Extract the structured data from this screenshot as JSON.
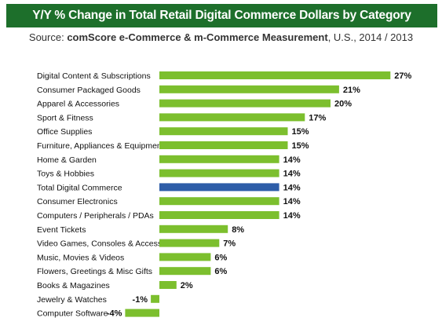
{
  "header": {
    "title": "Y/Y % Change in Total Retail Digital Commerce Dollars by Category",
    "source_label": "Source: ",
    "source_name": "comScore e-Commerce & m-Commerce Measurement",
    "source_rest": ", U.S., 2014 / 2013"
  },
  "colors": {
    "title_bg": "#1d6f2b",
    "bar": "#7cbf2e",
    "highlight_bar": "#2e5da8",
    "highlight_text": "#2e5da8"
  },
  "chart_data": {
    "type": "bar",
    "orientation": "horizontal",
    "title": "Y/Y % Change in Total Retail Digital Commerce Dollars by Category",
    "subtitle": "Source: comScore e-Commerce & m-Commerce Measurement, U.S., 2014 / 2013",
    "xlabel": "",
    "ylabel": "",
    "xlim": [
      -4,
      27
    ],
    "grid": false,
    "highlight_category": "Total Digital Commerce",
    "categories": [
      "Digital Content & Subscriptions",
      "Consumer Packaged Goods",
      "Apparel & Accessories",
      "Sport & Fitness",
      "Office Supplies",
      "Furniture, Appliances & Equipment",
      "Home & Garden",
      "Toys & Hobbies",
      "Total Digital Commerce",
      "Consumer Electronics",
      "Computers / Peripherals / PDAs",
      "Event Tickets",
      "Video Games, Consoles & Accessories",
      "Music, Movies & Videos",
      "Flowers, Greetings & Misc Gifts",
      "Books & Magazines",
      "Jewelry & Watches",
      "Computer Software"
    ],
    "values": [
      27,
      21,
      20,
      17,
      15,
      15,
      14,
      14,
      14,
      14,
      14,
      8,
      7,
      6,
      6,
      2,
      -1,
      -4
    ],
    "value_labels": [
      "27%",
      "21%",
      "20%",
      "17%",
      "15%",
      "15%",
      "14%",
      "14%",
      "14%",
      "14%",
      "14%",
      "8%",
      "7%",
      "6%",
      "6%",
      "2%",
      "-1%",
      "-4%"
    ]
  }
}
